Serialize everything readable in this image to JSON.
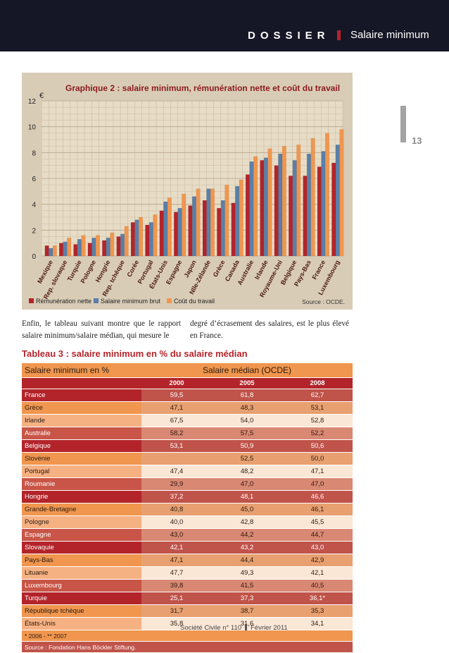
{
  "header": {
    "dossier": "DOSSIER",
    "section": "Salaire minimum",
    "page_number": "13"
  },
  "chart": {
    "title": "Graphique 2 : salaire minimum, rémunération nette et coût du travail",
    "unit": "€",
    "source": "Source : OCDE.",
    "legend": [
      "Rémunération nette",
      "Salaire minimum brut",
      "Coût du travail"
    ]
  },
  "chart_data": {
    "type": "bar",
    "title": "Graphique 2 : salaire minimum, rémunération nette et coût du travail",
    "ylabel": "€",
    "ylim": [
      0,
      12
    ],
    "yticks": [
      0,
      2,
      4,
      6,
      8,
      10,
      12
    ],
    "grid": true,
    "legend_position": "bottom",
    "colors": [
      "#b3242a",
      "#5a7fa8",
      "#f0964e"
    ],
    "categories": [
      "Mexique",
      "Rep. slovaque",
      "Turquie",
      "Pologne",
      "Hongrie",
      "Rep. tchèque",
      "Corée",
      "Portugal",
      "États-Unis",
      "Espagne",
      "Japon",
      "Nlle-Zélande",
      "Grèce",
      "Canada",
      "Australie",
      "Irlande",
      "Royaume-Uni",
      "Belgique",
      "Pays-Bas",
      "France",
      "Luxembourg"
    ],
    "series": [
      {
        "name": "Rémunération nette",
        "values": [
          0.8,
          1.0,
          0.9,
          1.0,
          1.2,
          1.5,
          2.6,
          2.4,
          3.5,
          3.4,
          3.9,
          4.3,
          3.7,
          4.1,
          6.3,
          7.4,
          7.0,
          6.2,
          6.2,
          6.9,
          7.2
        ]
      },
      {
        "name": "Salaire minimum brut",
        "values": [
          0.6,
          1.1,
          1.3,
          1.4,
          1.4,
          1.7,
          2.8,
          2.6,
          4.2,
          3.7,
          4.6,
          5.2,
          4.3,
          5.4,
          7.3,
          7.6,
          7.9,
          7.4,
          7.9,
          8.1,
          8.6
        ]
      },
      {
        "name": "Coût du travail",
        "values": [
          0.8,
          1.4,
          1.6,
          1.6,
          1.8,
          2.3,
          3.0,
          3.2,
          4.5,
          4.8,
          5.2,
          5.2,
          5.5,
          5.9,
          7.7,
          8.3,
          8.5,
          8.6,
          9.1,
          9.5,
          9.8
        ]
      }
    ]
  },
  "paragraph": {
    "left": "Enfin, le tableau suivant montre que le rapport salaire minimum/salaire médian, qui mesure le",
    "right": "degré d’écrasement des salaires, est le plus élevé en France."
  },
  "table": {
    "title": "Tableau 3 : salaire minimum en % du salaire médian",
    "col_header_left": "Salaire minimum en %",
    "col_header_right": "Salaire médian (OCDE)",
    "years": [
      "2000",
      "2005",
      "2008"
    ],
    "rows": [
      {
        "country": "France",
        "v2000": "59,5",
        "v2005": "61,8",
        "v2008": "62,7"
      },
      {
        "country": "Grèce",
        "v2000": "47,1",
        "v2005": "48,3",
        "v2008": "53,1"
      },
      {
        "country": "Irlande",
        "v2000": "67,5",
        "v2005": "54,0",
        "v2008": "52,8"
      },
      {
        "country": "Australie",
        "v2000": "58,2",
        "v2005": "57,5",
        "v2008": "52,2"
      },
      {
        "country": "Belgique",
        "v2000": "53,1",
        "v2005": "50,9",
        "v2008": "50,6"
      },
      {
        "country": "Slovénie",
        "v2000": "",
        "v2005": "52,5",
        "v2008": "50,0"
      },
      {
        "country": "Portugal",
        "v2000": "47,4",
        "v2005": "48,2",
        "v2008": "47,1"
      },
      {
        "country": "Roumanie",
        "v2000": "29,9",
        "v2005": "47,0",
        "v2008": "47,0"
      },
      {
        "country": "Hongrie",
        "v2000": "37,2",
        "v2005": "48,1",
        "v2008": "46,6"
      },
      {
        "country": "Grande-Bretagne",
        "v2000": "40,8",
        "v2005": "45,0",
        "v2008": "46,1"
      },
      {
        "country": "Pologne",
        "v2000": "40,0",
        "v2005": "42,8",
        "v2008": "45,5"
      },
      {
        "country": "Espagne",
        "v2000": "43,0",
        "v2005": "44,2",
        "v2008": "44,7"
      },
      {
        "country": "Slovaquie",
        "v2000": "42,1",
        "v2005": "43,2",
        "v2008": "43,0"
      },
      {
        "country": "Pays-Bas",
        "v2000": "47,1",
        "v2005": "44,4",
        "v2008": "42,9"
      },
      {
        "country": "Lituanie",
        "v2000": "47,7",
        "v2005": "49,3",
        "v2008": "42,1"
      },
      {
        "country": "Luxembourg",
        "v2000": "39,8",
        "v2005": "41,5",
        "v2008": "40,5"
      },
      {
        "country": "Turquie",
        "v2000": "25,1",
        "v2005": "37,3",
        "v2008": "36,1*"
      },
      {
        "country": "République tchèque",
        "v2000": "31,7",
        "v2005": "38,7",
        "v2008": "35,3"
      },
      {
        "country": "États-Unis",
        "v2000": "35,8",
        "v2005": "31,6",
        "v2008": "34,1"
      }
    ],
    "note": "* 2006 - ** 2007",
    "source": "Source : Fondation Hans Böckler Stiftung."
  },
  "footer": {
    "publication": "Société Civile n° 110",
    "date": "Février 2011"
  }
}
